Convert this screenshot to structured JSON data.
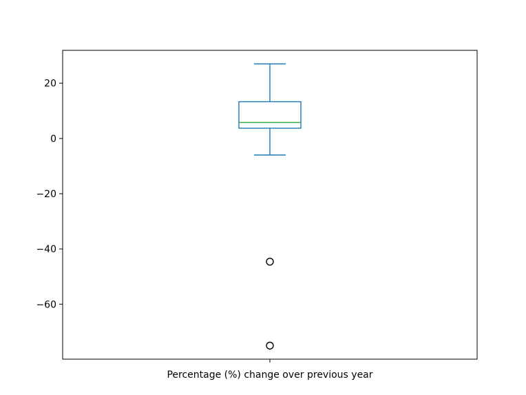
{
  "chart_data": {
    "type": "box",
    "categories": [
      "Percentage (%) change over previous year"
    ],
    "boxes": [
      {
        "label": "Percentage (%) change over previous year",
        "whisker_low": -6,
        "q1": 3.7,
        "median": 5.8,
        "q3": 13.3,
        "whisker_high": 27,
        "outliers": [
          -44.6,
          -75
        ]
      }
    ],
    "y_ticks": [
      20,
      0,
      -20,
      -40,
      -60
    ],
    "y_tick_labels": [
      "20",
      "0",
      "−20",
      "−40",
      "−60"
    ],
    "ylim": [
      -79.9,
      31.9
    ],
    "grid": false,
    "colors": {
      "box": "#1f77b4",
      "median": "#2ca02c",
      "outlier": "#000000",
      "axes": "#000000"
    }
  }
}
